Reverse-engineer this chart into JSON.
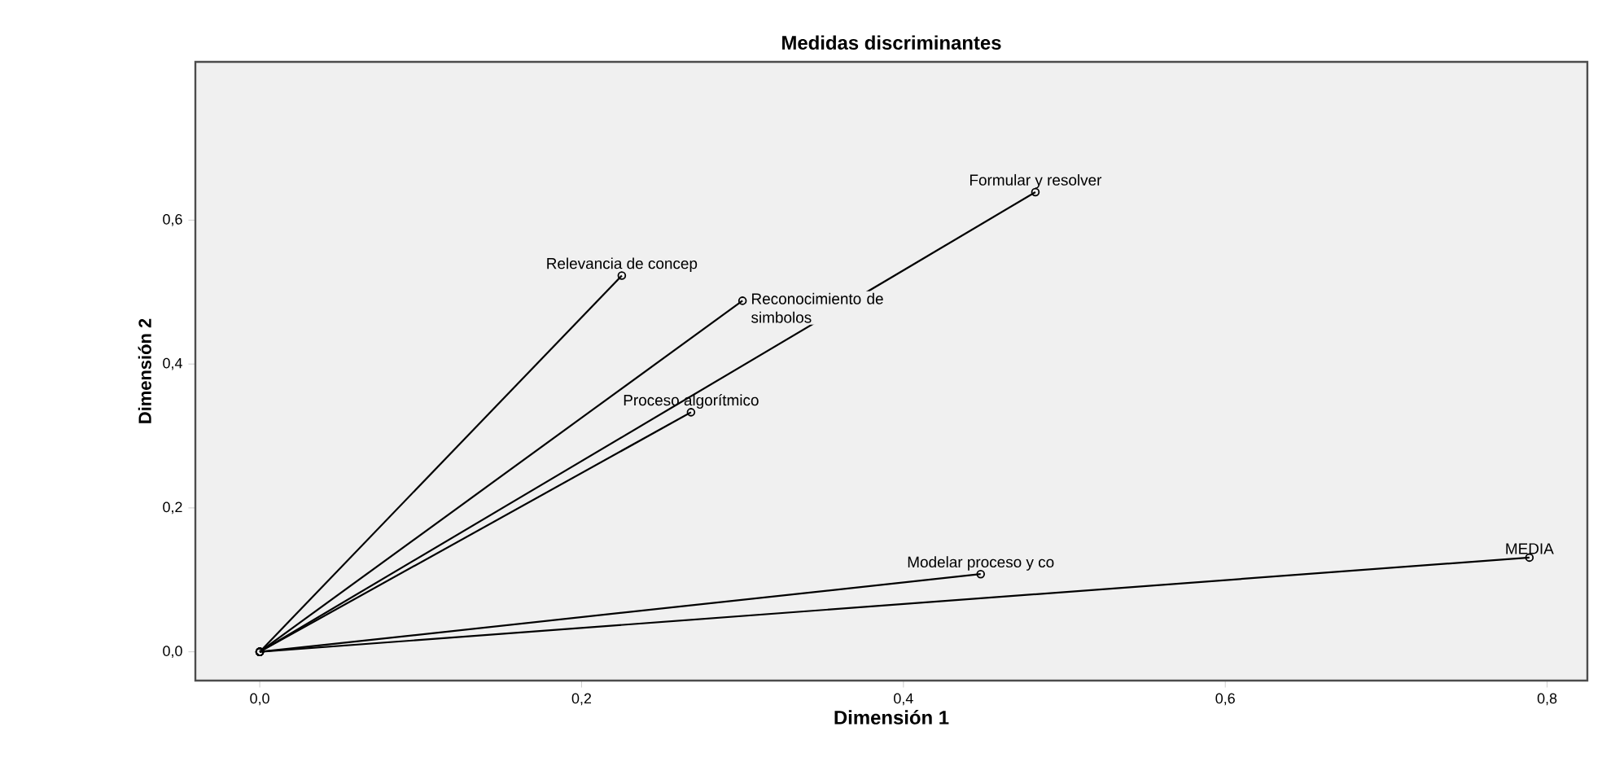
{
  "chart_data": {
    "type": "line",
    "title": "Medidas discriminantes",
    "xlabel": "Dimensión 1",
    "ylabel": "Dimensión 2",
    "xlim": [
      -0.04,
      0.825
    ],
    "ylim": [
      -0.04,
      0.82
    ],
    "xticks": [
      {
        "value": 0,
        "label": "0,0"
      },
      {
        "value": 0.2,
        "label": "0,2"
      },
      {
        "value": 0.4,
        "label": "0,4"
      },
      {
        "value": 0.6,
        "label": "0,6"
      },
      {
        "value": 0.8,
        "label": "0,8"
      }
    ],
    "yticks": [
      {
        "value": 0,
        "label": "0,0"
      },
      {
        "value": 0.2,
        "label": "0,2"
      },
      {
        "value": 0.4,
        "label": "0,4"
      },
      {
        "value": 0.6,
        "label": "0,6"
      }
    ],
    "marker": "circle",
    "line_style": "solid",
    "series": [
      {
        "name": "Relevancia de concep",
        "color": "#000000",
        "x": [
          0,
          0.225
        ],
        "values": [
          0,
          0.523
        ]
      },
      {
        "name": "Reconocimiento de simbolos",
        "color": "#000000",
        "x": [
          0,
          0.3
        ],
        "values": [
          0,
          0.488
        ]
      },
      {
        "name": "Formular y resolver",
        "color": "#000000",
        "x": [
          0,
          0.482
        ],
        "values": [
          0,
          0.639
        ]
      },
      {
        "name": "Proceso algorítmico",
        "color": "#000000",
        "x": [
          0,
          0.268
        ],
        "values": [
          0,
          0.333
        ]
      },
      {
        "name": "Modelar proceso y co",
        "color": "#000000",
        "x": [
          0,
          0.448
        ],
        "values": [
          0,
          0.108
        ]
      },
      {
        "name": "MEDIA",
        "color": "#000000",
        "x": [
          0,
          0.789
        ],
        "values": [
          0,
          0.131
        ]
      }
    ]
  }
}
